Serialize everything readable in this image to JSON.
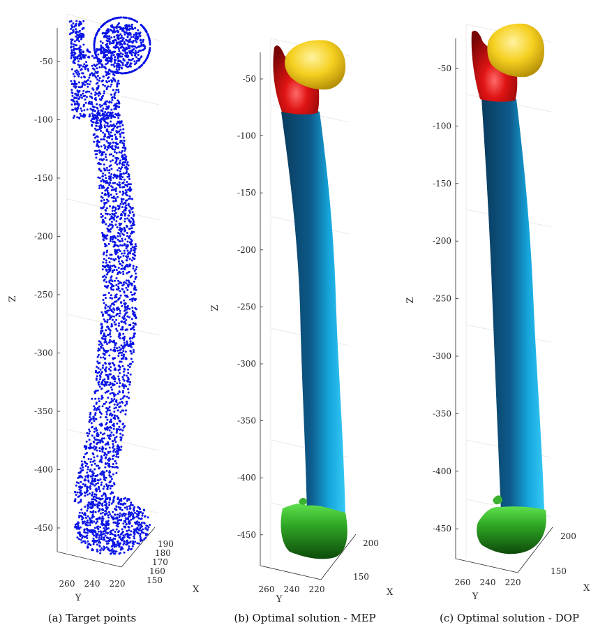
{
  "panels": [
    {
      "caption": "(a) Target points",
      "z_label": "Z",
      "y_label": "Y",
      "x_label": "X",
      "z_ticks": [
        "-50",
        "-100",
        "-150",
        "-200",
        "-250",
        "-300",
        "-350",
        "-400",
        "-450"
      ],
      "y_ticks": [
        "260",
        "240",
        "220"
      ],
      "x_ticks": [
        "190",
        "180",
        "170",
        "160",
        "150"
      ],
      "render": "point-cloud",
      "colors": {
        "points": "#0a14e6"
      }
    },
    {
      "caption": "(b) Optimal solution - MEP",
      "z_label": "Z",
      "y_label": "Y",
      "x_label": "X",
      "z_ticks": [
        "-50",
        "-100",
        "-150",
        "-200",
        "-250",
        "-300",
        "-350",
        "-400",
        "-450"
      ],
      "y_ticks": [
        "260",
        "240",
        "220"
      ],
      "x_ticks": [
        "200",
        "150"
      ],
      "render": "surface",
      "colors": {
        "head": "#f5d020",
        "neck": "#d41010",
        "shaft": "#1ab4e8",
        "condyle": "#2fbf2a"
      }
    },
    {
      "caption": "(c) Optimal solution - DOP",
      "z_label": "Z",
      "y_label": "Y",
      "x_label": "X",
      "z_ticks": [
        "-50",
        "-100",
        "-150",
        "-200",
        "-250",
        "-300",
        "-350",
        "-400",
        "-450"
      ],
      "y_ticks": [
        "260",
        "240",
        "220"
      ],
      "x_ticks": [
        "200",
        "150"
      ],
      "render": "surface",
      "colors": {
        "head": "#f5d020",
        "neck": "#d41010",
        "shaft": "#1ab4e8",
        "condyle": "#2fbf2a"
      }
    }
  ]
}
